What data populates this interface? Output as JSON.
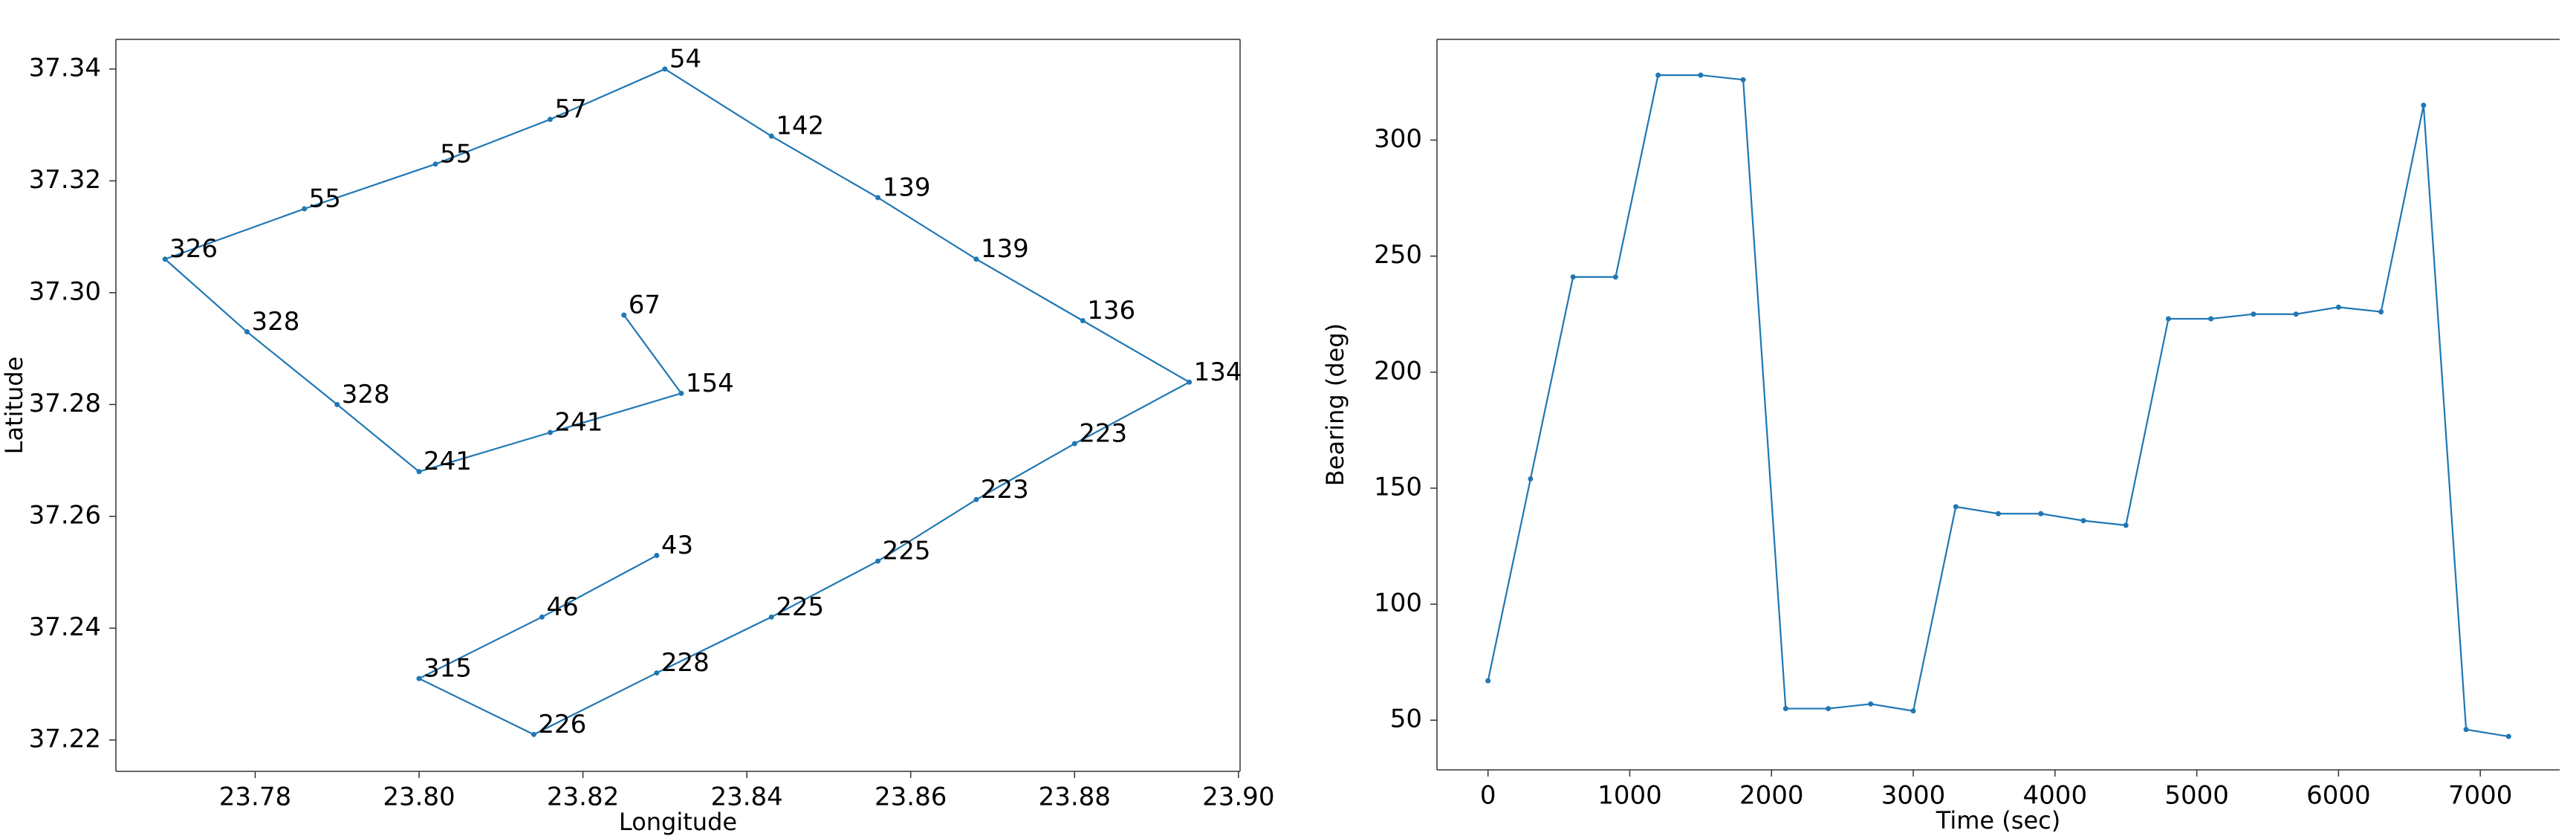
{
  "chart_data": [
    {
      "type": "line",
      "x_label": "Longitude",
      "y_label": "Latitude",
      "x": [
        23.825,
        23.832,
        23.816,
        23.8,
        23.79,
        23.779,
        23.769,
        23.786,
        23.802,
        23.816,
        23.83,
        23.843,
        23.856,
        23.868,
        23.881,
        23.894,
        23.88,
        23.868,
        23.856,
        23.843,
        23.829,
        23.814,
        23.8,
        23.815,
        23.829
      ],
      "series": [
        {
          "color": "#1f77b4",
          "values": [
            37.296,
            37.282,
            37.275,
            37.268,
            37.28,
            37.293,
            37.306,
            37.315,
            37.323,
            37.331,
            37.34,
            37.328,
            37.317,
            37.306,
            37.295,
            37.284,
            37.273,
            37.263,
            37.252,
            37.242,
            37.232,
            37.221,
            37.231,
            37.242,
            37.253
          ]
        }
      ],
      "xlim": [
        23.763,
        23.9002
      ],
      "ylim": [
        37.2144,
        37.3453
      ],
      "xticks": [
        {
          "value": 23.78,
          "label": "23.78"
        },
        {
          "value": 23.8,
          "label": "23.80"
        },
        {
          "value": 23.82,
          "label": "23.82"
        },
        {
          "value": 23.84,
          "label": "23.84"
        },
        {
          "value": 23.86,
          "label": "23.86"
        },
        {
          "value": 23.88,
          "label": "23.88"
        },
        {
          "value": 23.9,
          "label": "23.90"
        }
      ],
      "yticks": [
        {
          "value": 37.22,
          "label": "37.22"
        },
        {
          "value": 37.24,
          "label": "37.24"
        },
        {
          "value": 37.26,
          "label": "37.26"
        },
        {
          "value": 37.28,
          "label": "37.28"
        },
        {
          "value": 37.3,
          "label": "37.30"
        },
        {
          "value": 37.32,
          "label": "37.32"
        },
        {
          "value": 37.34,
          "label": "37.34"
        }
      ]
    },
    {
      "type": "line",
      "x_label": "Time (sec)",
      "y_label": "Bearing (deg)",
      "x": [
        0,
        300,
        600,
        900,
        1200,
        1500,
        1800,
        2100,
        2400,
        2700,
        3000,
        3300,
        3600,
        3900,
        4200,
        4500,
        4800,
        5100,
        5400,
        5700,
        6000,
        6300,
        6600,
        6900,
        7200
      ],
      "series": [
        {
          "color": "#1f77b4",
          "values": [
            67,
            154,
            241,
            241,
            328,
            328,
            326,
            55,
            55,
            57,
            54,
            142,
            139,
            139,
            136,
            134,
            223,
            223,
            225,
            225,
            228,
            226,
            315,
            46,
            43
          ]
        }
      ],
      "xlim": [
        -360,
        7560
      ],
      "ylim": [
        28.6,
        343.4
      ],
      "xticks": [
        0,
        1000,
        2000,
        3000,
        4000,
        5000,
        6000,
        7000
      ],
      "yticks": [
        50,
        100,
        150,
        200,
        250,
        300
      ]
    }
  ]
}
